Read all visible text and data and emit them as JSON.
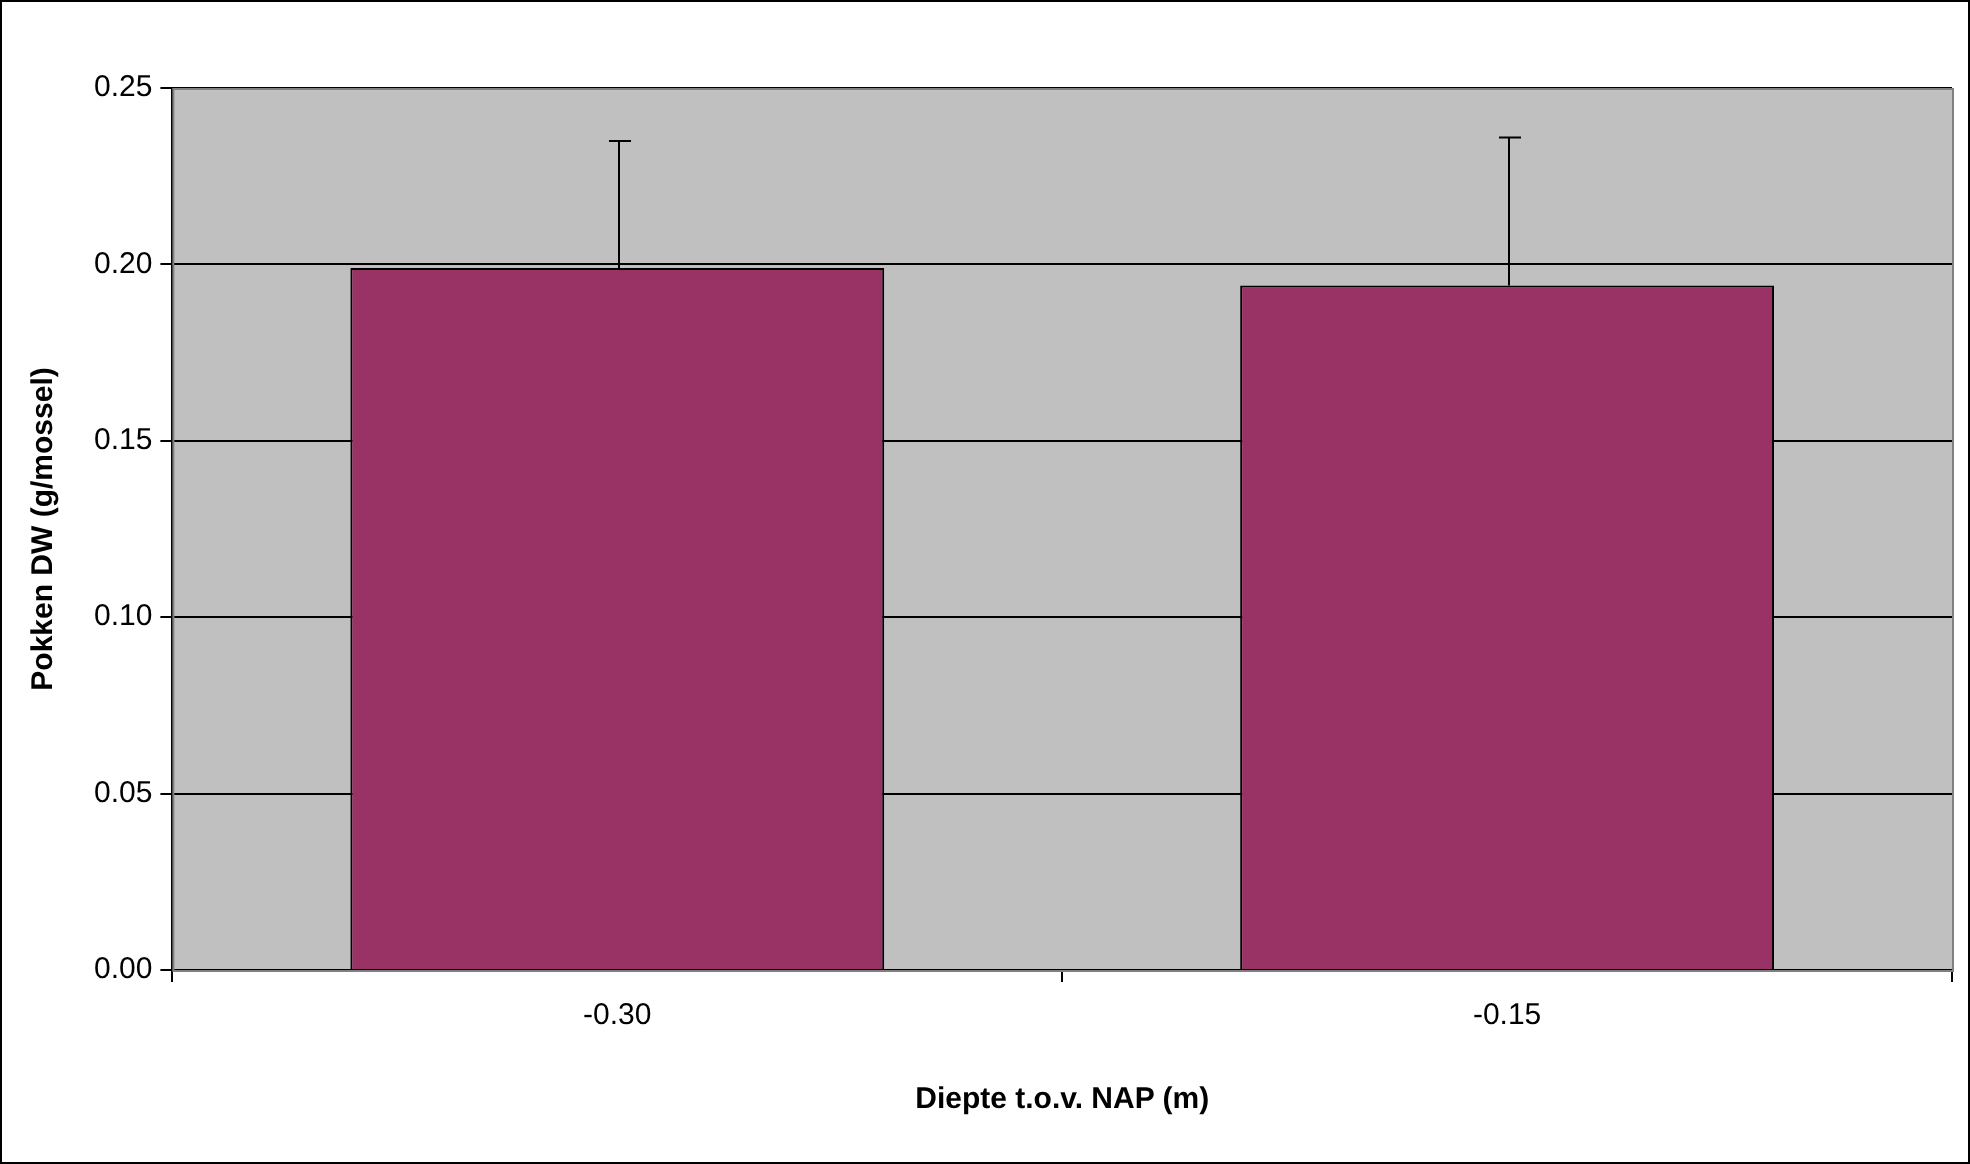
{
  "chart_data": {
    "type": "bar",
    "xlabel": "Diepte t.o.v. NAP (m)",
    "ylabel": "Pokken DW (g/mossel)",
    "categories": [
      "-0.30",
      "-0.15"
    ],
    "values": [
      0.199,
      0.194
    ],
    "color": "#993366",
    "errors": [
      [
        0.199,
        0.235
      ],
      [
        0.194,
        0.236
      ]
    ],
    "ylim": [
      0,
      0.25
    ],
    "yticks": [
      {
        "value": 0,
        "label": "0.00"
      },
      {
        "value": 0.05,
        "label": "0.05"
      },
      {
        "value": 0.1,
        "label": "0.10"
      },
      {
        "value": 0.15,
        "label": "0.15"
      },
      {
        "value": 0.2,
        "label": "0.20"
      },
      {
        "value": 0.25,
        "label": "0.25"
      }
    ],
    "grid": "y",
    "legend": false
  }
}
